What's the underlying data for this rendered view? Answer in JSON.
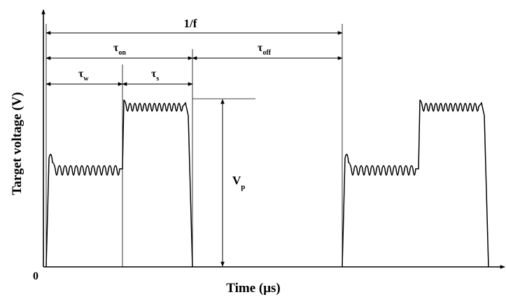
{
  "axes": {
    "origin_label": "0",
    "xlabel": "Time (μs)",
    "ylabel": "Target voltage (V)"
  },
  "intervals": {
    "period": {
      "main": "1/f",
      "sub": ""
    },
    "on_time": {
      "main": "τ",
      "sub": "on"
    },
    "off_time": {
      "main": "τ",
      "sub": "off"
    },
    "w_time": {
      "main": "τ",
      "sub": "w"
    },
    "s_time": {
      "main": "τ",
      "sub": "s"
    },
    "peak_voltage": {
      "main": "V",
      "sub": "p"
    }
  }
}
